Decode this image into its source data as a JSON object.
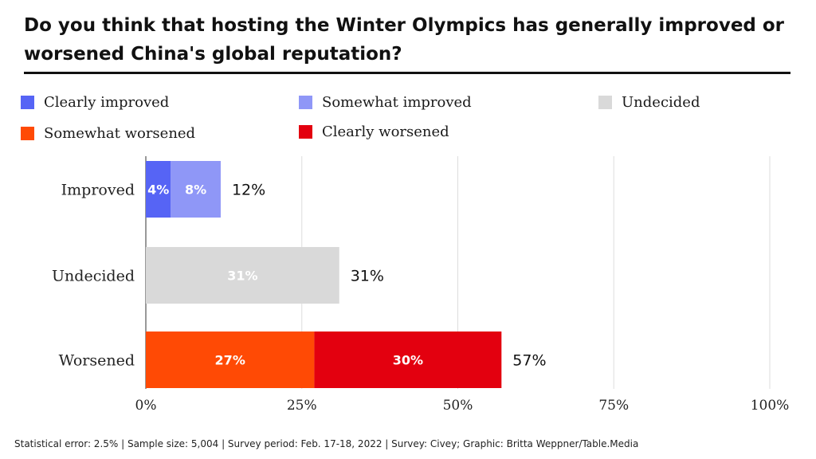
{
  "title": "Do you think that hosting the Winter Olympics has generally improved or worsened China's global reputation?",
  "footer": "Statistical error: 2.5% | Sample size: 5,004 | Survey period: Feb. 17-18, 2022 | Survey: Civey; Graphic: Britta Weppner/Table.Media",
  "legend": [
    {
      "label": "Clearly improved",
      "color": "#5664f5"
    },
    {
      "label": "Somewhat improved",
      "color": "#8f97f7"
    },
    {
      "label": "Undecided",
      "color": "#d9d9d9"
    },
    {
      "label": "Somewhat worsened",
      "color": "#ff4a05"
    },
    {
      "label": "Clearly worsened",
      "color": "#e3000f"
    }
  ],
  "chart_data": {
    "type": "bar",
    "orientation": "horizontal",
    "stacked": true,
    "categories": [
      "Improved",
      "Undecided",
      "Worsened"
    ],
    "series": [
      {
        "name": "Clearly improved",
        "color": "#5664f5",
        "values": [
          4,
          0,
          0
        ],
        "labels": [
          "4%",
          "",
          ""
        ]
      },
      {
        "name": "Somewhat improved",
        "color": "#8f97f7",
        "values": [
          8,
          0,
          0
        ],
        "labels": [
          "8%",
          "",
          ""
        ]
      },
      {
        "name": "Undecided",
        "color": "#d9d9d9",
        "values": [
          0,
          31,
          0
        ],
        "labels": [
          "",
          "31%",
          ""
        ]
      },
      {
        "name": "Somewhat worsened",
        "color": "#ff4a05",
        "values": [
          0,
          0,
          27
        ],
        "labels": [
          "",
          "",
          "27%"
        ]
      },
      {
        "name": "Clearly worsened",
        "color": "#e3000f",
        "values": [
          0,
          0,
          30
        ],
        "labels": [
          "",
          "",
          "30%"
        ]
      }
    ],
    "totals": [
      "12%",
      "31%",
      "57%"
    ],
    "xlim": [
      0,
      100
    ],
    "xticks": [
      0,
      25,
      50,
      75,
      100
    ],
    "xtick_labels": [
      "0%",
      "25%",
      "50%",
      "75%",
      "100%"
    ],
    "grid": true,
    "legend_position": "top"
  }
}
